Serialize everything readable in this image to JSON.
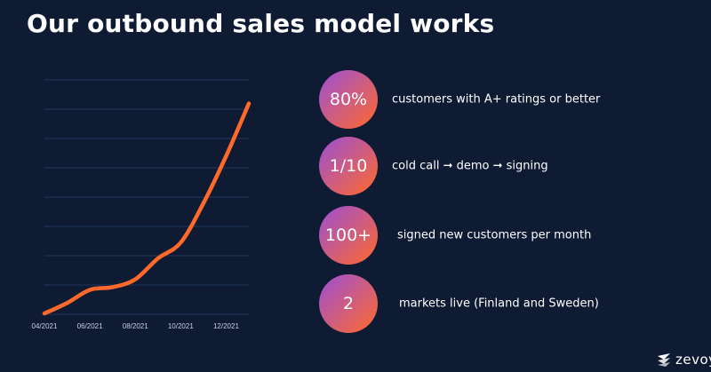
{
  "slide": {
    "title": "Our outbound sales model works"
  },
  "colors": {
    "background": "#0f1a33",
    "line": "#ff6a2a",
    "grid": "#27406a",
    "gradient_start": "#9b4fd6",
    "gradient_end": "#ff6a2a"
  },
  "chart_data": {
    "type": "line",
    "title": "",
    "xlabel": "",
    "ylabel": "",
    "grid": true,
    "x_tick_labels": [
      "04/2021",
      "06/2021",
      "08/2021",
      "10/2021",
      "12/2021"
    ],
    "ylim": [
      0,
      9
    ],
    "series": [
      {
        "x": [
          "04/2021",
          "05/2021",
          "06/2021",
          "07/2021",
          "08/2021",
          "09/2021",
          "10/2021",
          "11/2021",
          "12/2021",
          "01/2022"
        ],
        "values": [
          0.1,
          0.5,
          1.0,
          1.1,
          1.4,
          2.2,
          2.8,
          4.3,
          6.1,
          8.1
        ]
      }
    ]
  },
  "stats": [
    {
      "value": "80%",
      "text": "customers with A+ ratings or better"
    },
    {
      "value": "1/10",
      "text": "cold call ➞ demo ➞ signing"
    },
    {
      "value": "100+",
      "text": "signed new customers per month"
    },
    {
      "value": "2",
      "text": "markets live (Finland and Sweden)"
    }
  ],
  "logo": {
    "text": "zevoy",
    "icon": "zevoy-logo-icon"
  }
}
